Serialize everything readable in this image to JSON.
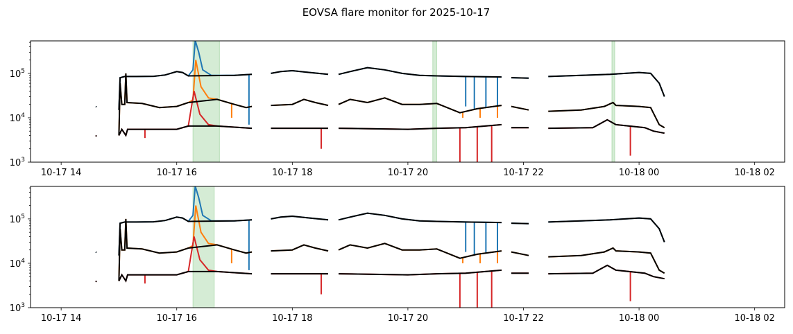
{
  "chart_data": {
    "type": "line",
    "title": "EOVSA flare monitor for 2025-10-17",
    "xlabel": "",
    "ylabel": "",
    "x_unit": "hours since 2025-10-17 00:00",
    "xlim": [
      13.47,
      26.52
    ],
    "ylim": [
      1000,
      540000
    ],
    "yscale": "log",
    "xtick_values": [
      14,
      16,
      18,
      20,
      22,
      24,
      26
    ],
    "xtick_labels": [
      "10-17 14",
      "10-17 16",
      "10-17 18",
      "10-17 20",
      "10-17 22",
      "10-18 00",
      "10-18 02"
    ],
    "ytick_values": [
      1000,
      10000,
      100000
    ],
    "ytick_labels": [
      {
        "base": "10",
        "exp": "3"
      },
      {
        "base": "10",
        "exp": "4"
      },
      {
        "base": "10",
        "exp": "5"
      }
    ],
    "panels": [
      {
        "flare_windows": [
          [
            16.28,
            16.74
          ],
          [
            20.43,
            20.5
          ],
          [
            23.53,
            23.58
          ]
        ]
      },
      {
        "flare_windows": [
          [
            16.28,
            16.65
          ]
        ]
      }
    ],
    "fit_color": "#000000",
    "fit_excluded_window": [
      16.27,
      16.62
    ],
    "series": [
      {
        "name": "blue",
        "color": "#1f77b4",
        "segments": [
          [
            [
              14.6,
              18000
            ],
            [
              14.61,
              17500
            ]
          ],
          [
            [
              15.0,
              15000
            ],
            [
              15.02,
              80000
            ],
            [
              15.1,
              85000
            ],
            [
              15.3,
              85000
            ],
            [
              15.6,
              86000
            ],
            [
              15.8,
              92000
            ],
            [
              16.0,
              110000
            ],
            [
              16.1,
              105000
            ],
            [
              16.2,
              88000
            ],
            [
              16.28,
              120000
            ],
            [
              16.32,
              550000
            ],
            [
              16.38,
              300000
            ],
            [
              16.45,
              120000
            ],
            [
              16.6,
              90000
            ],
            [
              17.0,
              90000
            ],
            [
              17.3,
              95000
            ]
          ],
          [
            [
              17.63,
              100000
            ],
            [
              17.8,
              110000
            ],
            [
              18.0,
              115000
            ],
            [
              18.3,
              105000
            ],
            [
              18.62,
              95000
            ]
          ],
          [
            [
              18.8,
              95000
            ],
            [
              19.0,
              110000
            ],
            [
              19.3,
              135000
            ],
            [
              19.6,
              120000
            ],
            [
              19.9,
              100000
            ],
            [
              20.2,
              90000
            ],
            [
              20.5,
              88000
            ],
            [
              21.0,
              85000
            ],
            [
              21.62,
              83000
            ]
          ],
          [
            [
              21.79,
              80000
            ],
            [
              22.09,
              78000
            ]
          ],
          [
            [
              22.43,
              85000
            ],
            [
              23.0,
              90000
            ],
            [
              23.5,
              95000
            ],
            [
              24.0,
              105000
            ],
            [
              24.2,
              100000
            ],
            [
              24.35,
              60000
            ],
            [
              24.44,
              30000
            ]
          ]
        ],
        "spikes": [
          [
            17.25,
            7000
          ],
          [
            21.0,
            18000
          ],
          [
            21.15,
            15000
          ],
          [
            21.35,
            17000
          ],
          [
            21.55,
            15000
          ]
        ]
      },
      {
        "name": "orange",
        "color": "#ff7f0e",
        "segments": [
          [
            [
              15.0,
              4000
            ],
            [
              15.02,
              60000
            ],
            [
              15.05,
              20000
            ],
            [
              15.1,
              20000
            ],
            [
              15.12,
              100000
            ],
            [
              15.14,
              22000
            ],
            [
              15.4,
              21000
            ],
            [
              15.7,
              17000
            ],
            [
              16.0,
              18000
            ],
            [
              16.2,
              22000
            ],
            [
              16.28,
              25000
            ],
            [
              16.33,
              200000
            ],
            [
              16.42,
              50000
            ],
            [
              16.55,
              28000
            ],
            [
              16.7,
              26000
            ],
            [
              17.0,
              20000
            ],
            [
              17.2,
              17000
            ],
            [
              17.3,
              18000
            ]
          ],
          [
            [
              17.63,
              19000
            ],
            [
              18.0,
              20000
            ],
            [
              18.2,
              26000
            ],
            [
              18.4,
              22000
            ],
            [
              18.62,
              19000
            ]
          ],
          [
            [
              18.8,
              20000
            ],
            [
              19.0,
              26000
            ],
            [
              19.3,
              22000
            ],
            [
              19.6,
              28000
            ],
            [
              19.9,
              20000
            ],
            [
              20.2,
              20000
            ],
            [
              20.5,
              21000
            ],
            [
              20.9,
              13000
            ],
            [
              21.2,
              16000
            ],
            [
              21.62,
              19000
            ]
          ],
          [
            [
              21.79,
              18000
            ],
            [
              22.09,
              15000
            ]
          ],
          [
            [
              22.43,
              14000
            ],
            [
              23.0,
              15000
            ],
            [
              23.4,
              18000
            ],
            [
              23.55,
              22000
            ],
            [
              23.6,
              19000
            ],
            [
              24.0,
              18000
            ],
            [
              24.2,
              17000
            ],
            [
              24.35,
              7000
            ],
            [
              24.44,
              6000
            ]
          ]
        ],
        "spikes": [
          [
            16.95,
            10000
          ],
          [
            20.95,
            10000
          ],
          [
            21.25,
            10000
          ],
          [
            21.55,
            10000
          ]
        ]
      },
      {
        "name": "red",
        "color": "#d62728",
        "segments": [
          [
            [
              14.6,
              4000
            ],
            [
              14.61,
              3800
            ]
          ],
          [
            [
              15.0,
              4000
            ],
            [
              15.05,
              5500
            ],
            [
              15.12,
              4000
            ],
            [
              15.15,
              5500
            ],
            [
              16.0,
              5500
            ],
            [
              16.2,
              6500
            ],
            [
              16.3,
              40000
            ],
            [
              16.4,
              12000
            ],
            [
              16.55,
              7000
            ],
            [
              16.7,
              6500
            ],
            [
              17.3,
              5800
            ]
          ],
          [
            [
              17.63,
              5800
            ],
            [
              18.62,
              5800
            ]
          ],
          [
            [
              18.8,
              5800
            ],
            [
              20.0,
              5500
            ],
            [
              20.5,
              5800
            ],
            [
              21.0,
              6000
            ],
            [
              21.62,
              7000
            ]
          ],
          [
            [
              21.79,
              6000
            ],
            [
              22.09,
              6000
            ]
          ],
          [
            [
              22.43,
              5800
            ],
            [
              23.2,
              6000
            ],
            [
              23.45,
              9000
            ],
            [
              23.6,
              7000
            ],
            [
              24.1,
              6000
            ],
            [
              24.25,
              5000
            ],
            [
              24.44,
              4500
            ]
          ]
        ],
        "spikes": [
          [
            15.45,
            3500
          ],
          [
            18.5,
            2000
          ],
          [
            20.9,
            1000
          ],
          [
            21.2,
            1000
          ],
          [
            21.45,
            1000
          ],
          [
            23.85,
            1400
          ]
        ]
      }
    ]
  }
}
